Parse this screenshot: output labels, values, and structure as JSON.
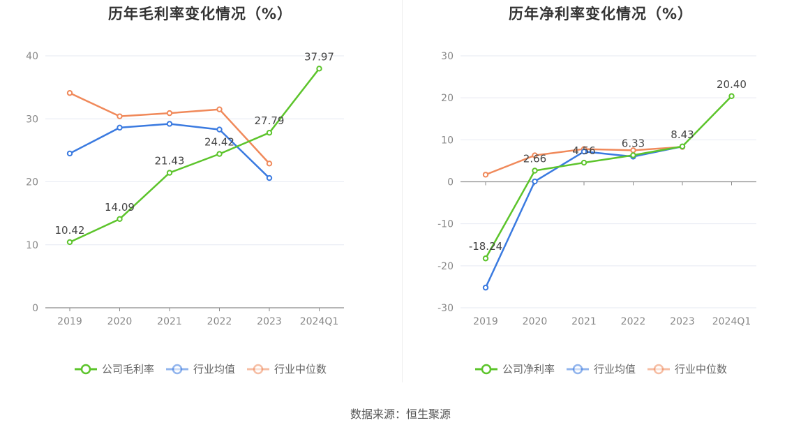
{
  "source": "数据来源：恒生聚源",
  "chart_data": [
    {
      "type": "line",
      "title": "历年毛利率变化情况（%）",
      "categories": [
        "2019",
        "2020",
        "2021",
        "2022",
        "2023",
        "2024Q1"
      ],
      "ylim": [
        0,
        40
      ],
      "yticks": [
        0,
        10,
        20,
        30,
        40
      ],
      "grid": true,
      "legend_position": "bottom",
      "series": [
        {
          "name": "公司毛利率",
          "color": "#5cc42b",
          "values": [
            10.42,
            14.09,
            21.43,
            24.42,
            27.79,
            37.97
          ],
          "labels": [
            "10.42",
            "14.09",
            "21.43",
            "24.42",
            "27.79",
            "37.97"
          ]
        },
        {
          "name": "行业均值",
          "color": "#3a7ae0",
          "values": [
            24.5,
            28.6,
            29.2,
            28.3,
            20.6,
            null
          ]
        },
        {
          "name": "行业中位数",
          "color": "#f0895a",
          "values": [
            34.1,
            30.4,
            30.9,
            31.5,
            22.9,
            null
          ]
        }
      ]
    },
    {
      "type": "line",
      "title": "历年净利率变化情况（%）",
      "categories": [
        "2019",
        "2020",
        "2021",
        "2022",
        "2023",
        "2024Q1"
      ],
      "ylim": [
        -30,
        30
      ],
      "yticks": [
        -30,
        -20,
        -10,
        0,
        10,
        20,
        30
      ],
      "grid": true,
      "legend_position": "bottom",
      "series": [
        {
          "name": "公司净利率",
          "color": "#5cc42b",
          "values": [
            -18.24,
            2.66,
            4.56,
            6.33,
            8.43,
            20.4
          ],
          "labels": [
            "-18.24",
            "2.66",
            "4.56",
            "6.33",
            "8.43",
            "20.40"
          ]
        },
        {
          "name": "行业均值",
          "color": "#3a7ae0",
          "values": [
            -25.2,
            0.1,
            7.2,
            6.0,
            8.4,
            null
          ]
        },
        {
          "name": "行业中位数",
          "color": "#f0895a",
          "values": [
            1.7,
            6.3,
            7.8,
            7.5,
            8.3,
            null
          ]
        }
      ]
    }
  ]
}
